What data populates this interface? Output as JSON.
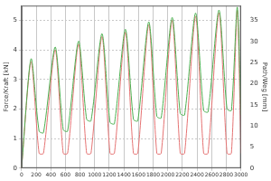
{
  "chart_data": {
    "type": "line",
    "x": [
      0,
      130,
      240,
      300,
      460,
      570,
      630,
      780,
      890,
      950,
      1100,
      1210,
      1270,
      1420,
      1530,
      1590,
      1740,
      1850,
      1910,
      2060,
      2170,
      2230,
      2380,
      2490,
      2550,
      2700,
      2810,
      2870,
      2950,
      3000
    ],
    "series": [
      {
        "color": "#4caf50",
        "axis": "y",
        "values": [
          0,
          3.7,
          1.25,
          1.2,
          4.1,
          1.3,
          1.25,
          4.3,
          1.65,
          1.6,
          4.55,
          1.55,
          1.5,
          4.7,
          1.65,
          1.6,
          4.95,
          1.75,
          1.7,
          5.1,
          1.85,
          1.8,
          5.25,
          1.95,
          1.9,
          5.35,
          2.0,
          1.95,
          5.45,
          1.8
        ]
      },
      {
        "color": "#e57373",
        "axis": "y2",
        "values": [
          0,
          25.2,
          3.5,
          3.5,
          28,
          3.5,
          3.5,
          29.4,
          3.5,
          3.5,
          31.2,
          3.5,
          3.5,
          32.2,
          3.5,
          3.5,
          34,
          3.5,
          3.5,
          35,
          3.5,
          3.5,
          36,
          3.5,
          3.5,
          36.8,
          3.5,
          3.5,
          37.4,
          3.5
        ]
      }
    ],
    "y_label": "Force/Kraft [kN]",
    "y2_label": "Path/Weg [mm]",
    "xlim": [
      0,
      3000
    ],
    "xticks": [
      0,
      200,
      400,
      600,
      800,
      1000,
      1200,
      1400,
      1600,
      1800,
      2000,
      2200,
      2400,
      2600,
      2800,
      3000
    ],
    "ylim": [
      0,
      5.5
    ],
    "yticks": [
      0,
      1,
      2,
      3,
      4,
      5
    ],
    "y2lim": [
      0,
      38.5
    ],
    "y2ticks": [
      0,
      5,
      10,
      15,
      20,
      25,
      30,
      35
    ],
    "grid": true
  }
}
